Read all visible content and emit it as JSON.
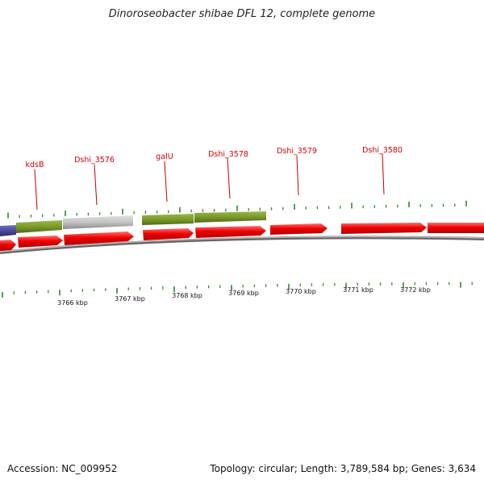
{
  "title": "Dinoroseobacter shibae DFL 12, complete genome",
  "footer": {
    "accession": "Accession: NC_009952",
    "summary": "Topology: circular; Length: 3,789,584 bp; Genes: 3,634"
  },
  "colors": {
    "forward_cds": "#ee0000",
    "green_gene": "#7a9a2a",
    "gray_gene": "#c4c4c4",
    "purple_gene": "#4a4a9a",
    "tick": "#2b8a2b",
    "gene_label": "#d40000",
    "backbone": "#888888"
  },
  "gene_labels": [
    {
      "text": "kdsB"
    },
    {
      "text": "Dshi_3576"
    },
    {
      "text": "galU"
    },
    {
      "text": "Dshi_3578"
    },
    {
      "text": "Dshi_3579"
    },
    {
      "text": "Dshi_3580"
    }
  ],
  "kbp_labels": [
    "3766 kbp",
    "3767 kbp",
    "3768 kbp",
    "3769 kbp",
    "3770 kbp",
    "3771 kbp",
    "3772 kbp"
  ]
}
